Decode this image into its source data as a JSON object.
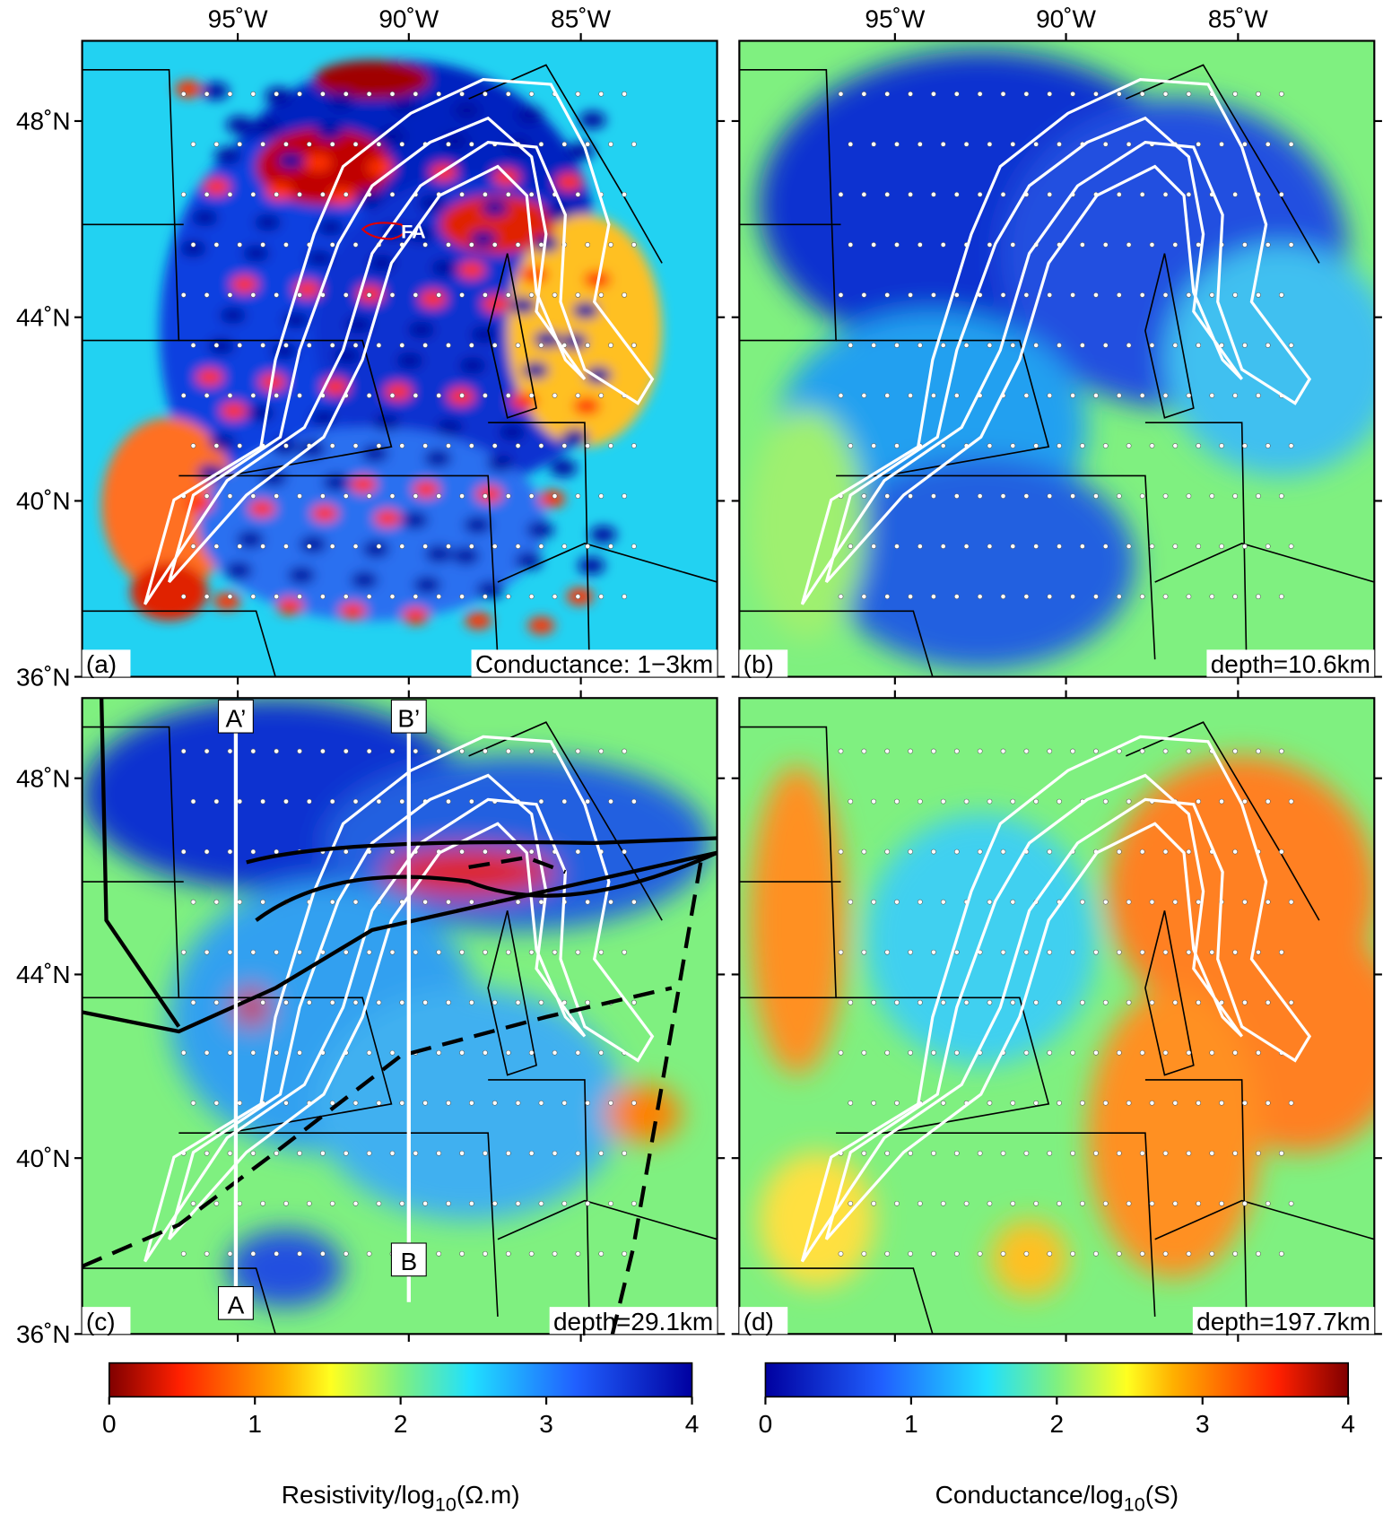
{
  "panels": [
    {
      "label": "(a)",
      "annotation": "Conductance: 1−3km",
      "feature_label": "FA"
    },
    {
      "label": "(b)",
      "annotation": "depth=10.6km"
    },
    {
      "label": "(c)",
      "annotation": "depth=29.1km",
      "profile_labels": [
        "A’",
        "B’",
        "A",
        "B"
      ]
    },
    {
      "label": "(d)",
      "annotation": "depth=197.7km"
    }
  ],
  "lon_ticks": [
    "95˚W",
    "90˚W",
    "85˚W"
  ],
  "lat_ticks": [
    "48˚N",
    "44˚N",
    "40˚N",
    "36˚N"
  ],
  "colorbars": [
    {
      "title": {
        "text": "Resistivity/log",
        "sub": "10",
        "after": "(Ω.m)"
      },
      "ticks": [
        0,
        1,
        2,
        3,
        4
      ]
    },
    {
      "title": {
        "text": "Conductance/log",
        "sub": "10",
        "after": "(S)"
      },
      "ticks": [
        0,
        1,
        2,
        3,
        4
      ]
    }
  ]
}
